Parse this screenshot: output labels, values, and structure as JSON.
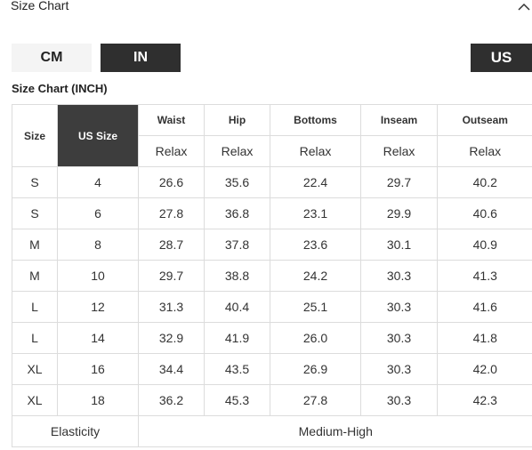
{
  "header": {
    "title": "Size Chart",
    "collapse_icon": "chevron-up-icon"
  },
  "units": {
    "cm": "CM",
    "in": "IN",
    "region": "US"
  },
  "chart_title": "Size Chart (INCH)",
  "table": {
    "size_label": "Size",
    "us_size_label": "US Size",
    "measure_headers": [
      "Waist",
      "Hip",
      "Bottoms",
      "Inseam",
      "Outseam"
    ],
    "fit_labels": [
      "Relax",
      "Relax",
      "Relax",
      "Relax",
      "Relax"
    ],
    "rows": [
      [
        "S",
        "4",
        "26.6",
        "35.6",
        "22.4",
        "29.7",
        "40.2"
      ],
      [
        "S",
        "6",
        "27.8",
        "36.8",
        "23.1",
        "29.9",
        "40.6"
      ],
      [
        "M",
        "8",
        "28.7",
        "37.8",
        "23.6",
        "30.1",
        "40.9"
      ],
      [
        "M",
        "10",
        "29.7",
        "38.8",
        "24.2",
        "30.3",
        "41.3"
      ],
      [
        "L",
        "12",
        "31.3",
        "40.4",
        "25.1",
        "30.3",
        "41.6"
      ],
      [
        "L",
        "14",
        "32.9",
        "41.9",
        "26.0",
        "30.3",
        "41.8"
      ],
      [
        "XL",
        "16",
        "34.4",
        "43.5",
        "26.9",
        "30.3",
        "42.0"
      ],
      [
        "XL",
        "18",
        "36.2",
        "45.3",
        "27.8",
        "30.3",
        "42.3"
      ]
    ],
    "footer": {
      "label": "Elasticity",
      "value": "Medium-High"
    }
  },
  "colors": {
    "active": "#2f2f2f",
    "inactive": "#f4f4f4",
    "border": "#dcdcdc"
  }
}
